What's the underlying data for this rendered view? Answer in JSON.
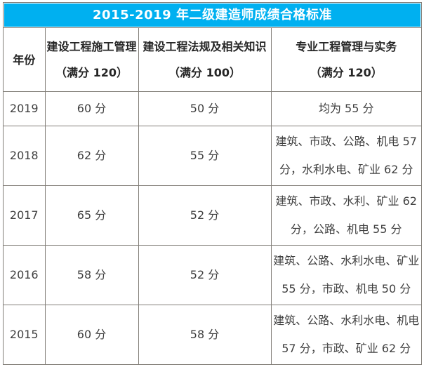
{
  "title": "2015-2019 年二级建造师成绩合格标准",
  "colors": {
    "title_bar_background": "#00b0f0",
    "title_text": "#ffffff",
    "table_border": "#827e78",
    "body_text": "#3f3f3f",
    "year_text": "#1f1f1f"
  },
  "table": {
    "columns": [
      {
        "line1": "年份",
        "line2": ""
      },
      {
        "line1": "建设工程施工管理",
        "line2": "（满分 120）"
      },
      {
        "line1": "建设工程法规及相关知识",
        "line2": "（满分 100）"
      },
      {
        "line1": "专业工程管理与实务",
        "line2": "（满分 120）"
      }
    ],
    "rows": [
      {
        "year": "2019",
        "management": "60 分",
        "regulations": "50 分",
        "practice": "均为 55 分"
      },
      {
        "year": "2018",
        "management": "62 分",
        "regulations": "55 分",
        "practice": "建筑、市政、公路、机电 57 分，水利水电、矿业 62 分"
      },
      {
        "year": "2017",
        "management": "65 分",
        "regulations": "52 分",
        "practice": "建筑、市政、水利、矿业 62 分，公路、机电 55 分"
      },
      {
        "year": "2016",
        "management": "58 分",
        "regulations": "52 分",
        "practice": "建筑、公路、水利水电、矿业 55 分，市政、机电 50 分"
      },
      {
        "year": "2015",
        "management": "60 分",
        "regulations": "58 分",
        "practice": "建筑、公路、水利水电、机电 57 分，市政、矿业 62 分"
      }
    ]
  },
  "chart_data": {
    "type": "table",
    "title": "2015-2019 年二级建造师成绩合格标准",
    "columns": [
      "年份",
      "建设工程施工管理（满分 120）",
      "建设工程法规及相关知识（满分 100）",
      "专业工程管理与实务（满分 120）"
    ],
    "rows": [
      [
        "2019",
        "60 分",
        "50 分",
        "均为 55 分"
      ],
      [
        "2018",
        "62 分",
        "55 分",
        "建筑、市政、公路、机电 57 分，水利水电、矿业 62 分"
      ],
      [
        "2017",
        "65 分",
        "52 分",
        "建筑、市政、水利、矿业 62 分，公路、机电 55 分"
      ],
      [
        "2016",
        "58 分",
        "52 分",
        "建筑、公路、水利水电、矿业 55 分，市政、机电 50 分"
      ],
      [
        "2015",
        "60 分",
        "58 分",
        "建筑、公路、水利水电、机电 57 分，市政、矿业 62 分"
      ]
    ]
  }
}
